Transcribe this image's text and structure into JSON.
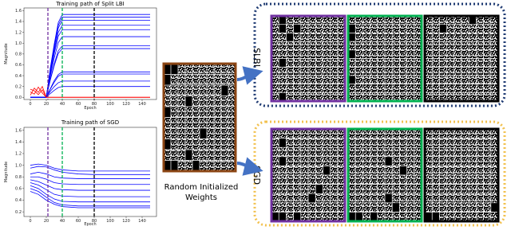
{
  "chart_data": [
    {
      "type": "line",
      "title": "Training path of Split LBI",
      "x_label": "Epoch",
      "y_label": "Magnitude",
      "x": [
        0,
        5,
        10,
        15,
        20,
        25,
        30,
        35,
        40,
        60,
        100,
        150
      ],
      "xlim": [
        -8,
        158
      ],
      "ylim": [
        -0.04,
        1.65
      ],
      "xticks": [
        0,
        20,
        40,
        60,
        80,
        100,
        120,
        140
      ],
      "yticks": [
        {
          "value": 0,
          "label": "0.0"
        },
        0.2,
        0.4,
        0.6,
        0.8,
        {
          "value": 1,
          "label": "1.0"
        },
        1.2,
        1.4,
        1.6
      ],
      "vlines": [
        {
          "x": 22,
          "color": "#7030a0"
        },
        {
          "x": 40,
          "color": "#00b050"
        },
        {
          "x": 80,
          "color": "#000000"
        }
      ],
      "series": [
        {
          "color": "#0000ff",
          "values": [
            0,
            0,
            0,
            0,
            0,
            0.54,
            0.99,
            1.38,
            1.53,
            1.53,
            1.53,
            1.53
          ]
        },
        {
          "color": "#0000ff",
          "values": [
            0,
            0,
            0,
            0,
            0,
            0.52,
            0.96,
            1.33,
            1.48,
            1.48,
            1.48,
            1.48
          ]
        },
        {
          "color": "#0000ff",
          "values": [
            0,
            0,
            0,
            0,
            0,
            0.5,
            0.92,
            1.28,
            1.42,
            1.42,
            1.42,
            1.42
          ]
        },
        {
          "color": "#0000ff",
          "values": [
            0,
            0,
            0,
            0,
            0,
            0.47,
            0.86,
            1.2,
            1.33,
            1.33,
            1.33,
            1.33
          ]
        },
        {
          "color": "#0000ff",
          "values": [
            0,
            0,
            0,
            0,
            0,
            0.44,
            0.81,
            1.13,
            1.25,
            1.25,
            1.25,
            1.25
          ]
        },
        {
          "color": "#0000ff",
          "values": [
            0,
            0,
            0,
            0,
            0,
            0.39,
            0.73,
            1.01,
            1.12,
            1.12,
            1.12,
            1.12
          ]
        },
        {
          "color": "#0000ff",
          "values": [
            0,
            0,
            0,
            0,
            0,
            0.33,
            0.62,
            0.86,
            0.95,
            0.95,
            0.95,
            0.95
          ]
        },
        {
          "color": "#0000ff",
          "values": [
            0,
            0,
            0,
            0,
            0,
            0.32,
            0.59,
            0.81,
            0.9,
            0.9,
            0.9,
            0.9
          ]
        },
        {
          "color": "#0000ff",
          "values": [
            0,
            0,
            0,
            0,
            0,
            0.16,
            0.31,
            0.42,
            0.47,
            0.47,
            0.47,
            0.47
          ]
        },
        {
          "color": "#0000ff",
          "values": [
            0,
            0,
            0,
            0,
            0,
            0.15,
            0.28,
            0.39,
            0.43,
            0.43,
            0.43,
            0.43
          ]
        },
        {
          "color": "#0000ff",
          "values": [
            0,
            0,
            0,
            0,
            0,
            0.11,
            0.2,
            0.27,
            0.3,
            0.3,
            0.3,
            0.3
          ]
        },
        {
          "color": "#0000ff",
          "values": [
            0,
            0,
            0,
            0,
            0,
            0.07,
            0.13,
            0.18,
            0.2,
            0.2,
            0.2,
            0.2
          ]
        },
        {
          "color": "#ff0000",
          "values": [
            0.04,
            0.17,
            0.09,
            0.2,
            0,
            0,
            0,
            0,
            0,
            0,
            0,
            0
          ]
        },
        {
          "color": "#ff0000",
          "values": [
            0.1,
            0.06,
            0.19,
            0.08,
            0,
            0,
            0,
            0,
            0,
            0,
            0,
            0
          ]
        },
        {
          "color": "#ff0000",
          "values": [
            0.15,
            0.12,
            0.05,
            0.14,
            0,
            0,
            0,
            0,
            0,
            0,
            0,
            0
          ]
        }
      ]
    },
    {
      "type": "line",
      "title": "Training path of SGD",
      "x_label": "Epoch",
      "y_label": "Magnitude",
      "x": [
        0,
        10,
        20,
        30,
        40,
        60,
        80,
        150
      ],
      "xlim": [
        -8,
        158
      ],
      "ylim": [
        0.12,
        1.65
      ],
      "xticks": [
        0,
        20,
        40,
        60,
        80,
        100,
        120,
        140
      ],
      "yticks": [
        0.2,
        0.4,
        0.6,
        0.8,
        {
          "value": 1,
          "label": "1.0"
        },
        1.2,
        1.4,
        1.6
      ],
      "vlines": [
        {
          "x": 22,
          "color": "#7030a0"
        },
        {
          "x": 40,
          "color": "#00b050"
        },
        {
          "x": 80,
          "color": "#000000"
        }
      ],
      "series": [
        {
          "color": "#0000ff",
          "values": [
            1.0,
            1.02,
            1.0,
            0.95,
            0.92,
            0.9,
            0.9,
            0.9
          ]
        },
        {
          "color": "#0000ff",
          "values": [
            0.95,
            0.98,
            0.97,
            0.92,
            0.88,
            0.85,
            0.84,
            0.84
          ]
        },
        {
          "color": "#0000ff",
          "values": [
            0.85,
            0.88,
            0.85,
            0.8,
            0.78,
            0.77,
            0.77,
            0.77
          ]
        },
        {
          "color": "#0000ff",
          "values": [
            0.8,
            0.8,
            0.76,
            0.7,
            0.68,
            0.67,
            0.67,
            0.67
          ]
        },
        {
          "color": "#0000ff",
          "values": [
            0.75,
            0.72,
            0.66,
            0.6,
            0.58,
            0.57,
            0.57,
            0.57
          ]
        },
        {
          "color": "#0000ff",
          "values": [
            0.7,
            0.66,
            0.58,
            0.5,
            0.47,
            0.46,
            0.46,
            0.46
          ]
        },
        {
          "color": "#0000ff",
          "values": [
            0.65,
            0.6,
            0.5,
            0.42,
            0.38,
            0.37,
            0.37,
            0.37
          ]
        },
        {
          "color": "#0000ff",
          "values": [
            0.6,
            0.55,
            0.45,
            0.36,
            0.32,
            0.3,
            0.3,
            0.3
          ]
        },
        {
          "color": "#0000ff",
          "values": [
            0.55,
            0.5,
            0.4,
            0.33,
            0.29,
            0.27,
            0.27,
            0.27
          ]
        }
      ]
    }
  ],
  "weights": {
    "label": "Random Initialized Weights"
  },
  "panels": {
    "slbi_label": "SLBI",
    "sgd_label": "SGD"
  }
}
